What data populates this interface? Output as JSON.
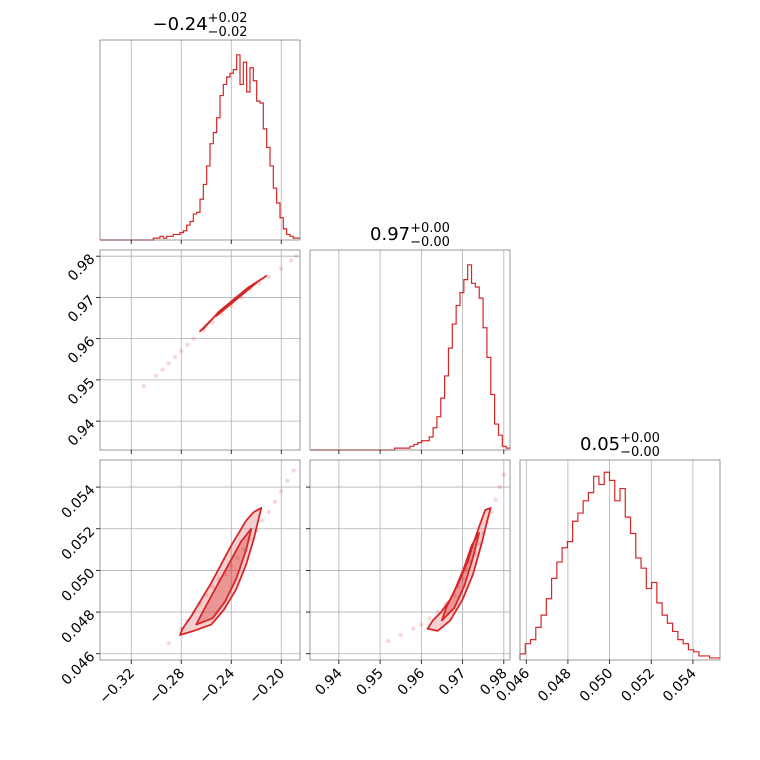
{
  "chart_data": {
    "type": "corner",
    "color": "#d62728",
    "params": [
      {
        "title_value": "−0.24",
        "title_plus": "+0.02",
        "title_minus": "−0.02",
        "range": [
          -0.345,
          -0.185
        ],
        "ticks": [
          -0.32,
          -0.28,
          -0.24,
          -0.2
        ],
        "tick_labels": [
          "−0.32",
          "−0.28",
          "−0.24",
          "−0.20"
        ],
        "hist": {
          "counts": [
            0,
            0,
            0,
            0,
            0,
            0,
            0,
            0,
            0,
            0,
            0,
            0,
            0,
            0,
            0,
            0,
            1,
            1,
            2,
            1,
            2,
            2,
            3,
            3,
            4,
            5,
            8,
            10,
            14,
            15,
            22,
            30,
            40,
            52,
            58,
            66,
            78,
            84,
            88,
            90,
            92,
            100,
            84,
            96,
            80,
            93,
            86,
            75,
            74,
            60,
            50,
            40,
            28,
            20,
            12,
            6,
            3,
            2,
            1,
            1
          ],
          "ylim": [
            0,
            108
          ]
        }
      },
      {
        "title_value": "0.97",
        "title_plus": "+0.00",
        "title_minus": "−0.00",
        "range": [
          0.933,
          0.9815
        ],
        "ticks": [
          0.94,
          0.95,
          0.96,
          0.97,
          0.98
        ],
        "tick_labels": [
          "0.94",
          "0.95",
          "0.96",
          "0.97",
          "0.98"
        ],
        "hist": {
          "counts": [
            0,
            0,
            0,
            0,
            0,
            0,
            0,
            0,
            0,
            0,
            0,
            0,
            0,
            0,
            0,
            0,
            0,
            0,
            0,
            0,
            0,
            0,
            1,
            1,
            1,
            1,
            2,
            3,
            4,
            5,
            5,
            7,
            12,
            18,
            28,
            40,
            55,
            68,
            78,
            85,
            92,
            100,
            90,
            88,
            82,
            66,
            50,
            30,
            14,
            8,
            2,
            1
          ],
          "ylim": [
            0,
            108
          ]
        }
      },
      {
        "title_value": "0.05",
        "title_plus": "+0.00",
        "title_minus": "−0.00",
        "range": [
          0.0457,
          0.0553
        ],
        "ticks": [
          0.046,
          0.048,
          0.05,
          0.052,
          0.054
        ],
        "tick_labels": [
          "0.046",
          "0.048",
          "0.050",
          "0.052",
          "0.054"
        ],
        "hist": {
          "counts": [
            3,
            8,
            10,
            16,
            22,
            30,
            40,
            48,
            55,
            58,
            68,
            72,
            78,
            82,
            90,
            86,
            92,
            88,
            78,
            84,
            70,
            62,
            50,
            45,
            35,
            38,
            28,
            22,
            18,
            14,
            10,
            8,
            5,
            4,
            2,
            2,
            1,
            1
          ],
          "ylim": [
            0,
            98
          ]
        }
      }
    ],
    "pairs": [
      {
        "x": 0,
        "y": 1,
        "points": [
          [
            -0.31,
            0.9485
          ],
          [
            -0.3,
            0.951
          ],
          [
            -0.295,
            0.9525
          ],
          [
            -0.29,
            0.954
          ],
          [
            -0.285,
            0.9555
          ],
          [
            -0.28,
            0.957
          ],
          [
            -0.275,
            0.9585
          ],
          [
            -0.27,
            0.96
          ],
          [
            -0.262,
            0.962
          ],
          [
            -0.255,
            0.964
          ],
          [
            -0.248,
            0.966
          ],
          [
            -0.24,
            0.968
          ],
          [
            -0.232,
            0.97
          ],
          [
            -0.225,
            0.972
          ],
          [
            -0.218,
            0.9735
          ],
          [
            -0.21,
            0.975
          ],
          [
            -0.2,
            0.977
          ],
          [
            -0.192,
            0.979
          ],
          [
            -0.188,
            0.98
          ]
        ],
        "contours": [
          [
            [
              -0.262,
              0.9625
            ],
            [
              -0.25,
              0.9665
            ],
            [
              -0.238,
              0.9695
            ],
            [
              -0.226,
              0.9725
            ],
            [
              -0.214,
              0.9748
            ],
            [
              -0.212,
              0.9752
            ],
            [
              -0.224,
              0.9728
            ],
            [
              -0.236,
              0.97
            ],
            [
              -0.248,
              0.967
            ],
            [
              -0.26,
              0.9633
            ],
            [
              -0.265,
              0.9618
            ]
          ],
          [
            [
              -0.252,
              0.9655
            ],
            [
              -0.24,
              0.9688
            ],
            [
              -0.228,
              0.9718
            ],
            [
              -0.22,
              0.9735
            ],
            [
              -0.226,
              0.972
            ],
            [
              -0.238,
              0.969
            ],
            [
              -0.25,
              0.966
            ]
          ]
        ]
      },
      {
        "x": 0,
        "y": 2,
        "points": [
          [
            -0.29,
            0.0465
          ],
          [
            -0.28,
            0.0472
          ],
          [
            -0.275,
            0.0476
          ],
          [
            -0.27,
            0.048
          ],
          [
            -0.265,
            0.0484
          ],
          [
            -0.26,
            0.0488
          ],
          [
            -0.255,
            0.0492
          ],
          [
            -0.25,
            0.0496
          ],
          [
            -0.245,
            0.0498
          ],
          [
            -0.24,
            0.0502
          ],
          [
            -0.235,
            0.0506
          ],
          [
            -0.23,
            0.051
          ],
          [
            -0.225,
            0.0515
          ],
          [
            -0.22,
            0.0519
          ],
          [
            -0.215,
            0.0524
          ],
          [
            -0.21,
            0.0528
          ],
          [
            -0.205,
            0.0533
          ],
          [
            -0.2,
            0.0538
          ],
          [
            -0.195,
            0.0543
          ],
          [
            -0.19,
            0.0548
          ]
        ],
        "contours": [
          [
            [
              -0.281,
              0.0469
            ],
            [
              -0.27,
              0.0471
            ],
            [
              -0.256,
              0.0474
            ],
            [
              -0.246,
              0.0481
            ],
            [
              -0.236,
              0.0491
            ],
            [
              -0.228,
              0.0503
            ],
            [
              -0.222,
              0.0515
            ],
            [
              -0.218,
              0.0525
            ],
            [
              -0.216,
              0.053
            ],
            [
              -0.222,
              0.0528
            ],
            [
              -0.228,
              0.0524
            ],
            [
              -0.234,
              0.0518
            ],
            [
              -0.24,
              0.0512
            ],
            [
              -0.248,
              0.0503
            ],
            [
              -0.256,
              0.0494
            ],
            [
              -0.264,
              0.0486
            ],
            [
              -0.272,
              0.0478
            ],
            [
              -0.279,
              0.0472
            ]
          ],
          [
            [
              -0.268,
              0.0474
            ],
            [
              -0.255,
              0.0477
            ],
            [
              -0.245,
              0.0485
            ],
            [
              -0.236,
              0.0496
            ],
            [
              -0.228,
              0.051
            ],
            [
              -0.224,
              0.052
            ],
            [
              -0.232,
              0.0514
            ],
            [
              -0.242,
              0.0503
            ],
            [
              -0.252,
              0.0492
            ],
            [
              -0.262,
              0.0481
            ]
          ]
        ]
      },
      {
        "x": 1,
        "y": 2,
        "points": [
          [
            0.952,
            0.0466
          ],
          [
            0.955,
            0.0469
          ],
          [
            0.958,
            0.0472
          ],
          [
            0.96,
            0.0474
          ],
          [
            0.962,
            0.0477
          ],
          [
            0.964,
            0.048
          ],
          [
            0.966,
            0.0484
          ],
          [
            0.968,
            0.0488
          ],
          [
            0.969,
            0.0492
          ],
          [
            0.97,
            0.0496
          ],
          [
            0.971,
            0.05
          ],
          [
            0.972,
            0.0504
          ],
          [
            0.973,
            0.0508
          ],
          [
            0.974,
            0.0513
          ],
          [
            0.975,
            0.0518
          ],
          [
            0.976,
            0.0523
          ],
          [
            0.977,
            0.0528
          ],
          [
            0.978,
            0.0534
          ],
          [
            0.979,
            0.054
          ],
          [
            0.98,
            0.0546
          ]
        ],
        "contours": [
          [
            [
              0.9615,
              0.0472
            ],
            [
              0.964,
              0.0471
            ],
            [
              0.967,
              0.0476
            ],
            [
              0.97,
              0.0486
            ],
            [
              0.9725,
              0.0498
            ],
            [
              0.9745,
              0.0512
            ],
            [
              0.976,
              0.0524
            ],
            [
              0.9768,
              0.053
            ],
            [
              0.9755,
              0.0529
            ],
            [
              0.9742,
              0.0522
            ],
            [
              0.9728,
              0.0514
            ],
            [
              0.9712,
              0.0504
            ],
            [
              0.969,
              0.0494
            ],
            [
              0.967,
              0.0486
            ],
            [
              0.9648,
              0.048
            ],
            [
              0.9628,
              0.0476
            ]
          ],
          [
            [
              0.965,
              0.0476
            ],
            [
              0.968,
              0.0482
            ],
            [
              0.9705,
              0.0493
            ],
            [
              0.9725,
              0.0506
            ],
            [
              0.974,
              0.0518
            ],
            [
              0.9722,
              0.0512
            ],
            [
              0.9705,
              0.0502
            ],
            [
              0.968,
              0.049
            ],
            [
              0.966,
              0.0482
            ]
          ]
        ]
      }
    ]
  }
}
